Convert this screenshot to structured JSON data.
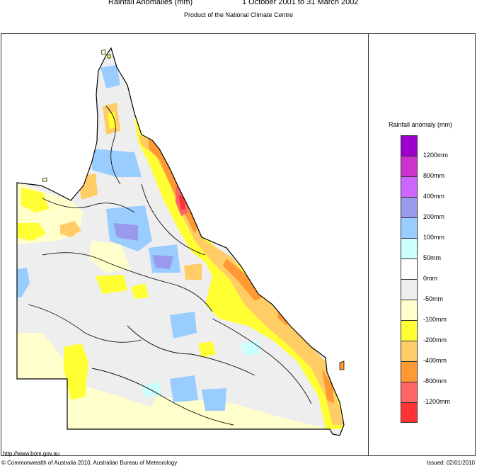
{
  "header": {
    "title": "Rainfall Anomalies (mm)",
    "period": "1 October 2001 to 31 March 2002",
    "subtitle": "Product of the National Climate Centre"
  },
  "legend": {
    "title": "Rainfall anomaly (mm)",
    "bands": [
      {
        "color": "#9b00cc",
        "label": "1200mm"
      },
      {
        "color": "#cc33cc",
        "label": "800mm"
      },
      {
        "color": "#cc66ff",
        "label": "400mm"
      },
      {
        "color": "#9999ee",
        "label": "200mm"
      },
      {
        "color": "#99ccff",
        "label": "100mm"
      },
      {
        "color": "#ccffff",
        "label": "50mm"
      },
      {
        "color": "#ffffff",
        "label": "0mm"
      },
      {
        "color": "#eeeeee",
        "label": "-50mm"
      },
      {
        "color": "#ffffcc",
        "label": "-100mm"
      },
      {
        "color": "#ffff33",
        "label": "-200mm"
      },
      {
        "color": "#ffcc66",
        "label": "-400mm"
      },
      {
        "color": "#ff9933",
        "label": "-800mm"
      },
      {
        "color": "#ff6666",
        "label": "-1200mm"
      },
      {
        "color": "#ff3333",
        "label": ""
      }
    ]
  },
  "footer": {
    "url": "http://www.bom.gov.au",
    "copyright": "© Commonwealth of Australia 2010, Australian Bureau of Meteorology",
    "issued": "Issued: 02/01/2010"
  }
}
